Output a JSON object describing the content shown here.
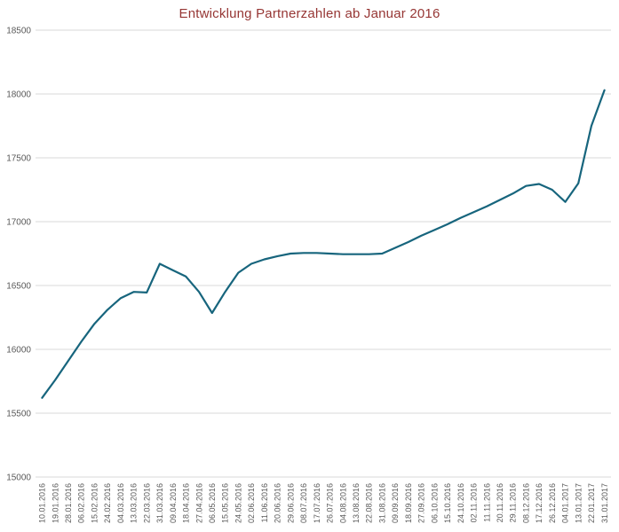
{
  "chart_data": {
    "type": "line",
    "title": "Entwicklung Partnerzahlen ab Januar 2016",
    "categories": [
      "10.01.2016",
      "19.01.2016",
      "28.01.2016",
      "06.02.2016",
      "15.02.2016",
      "24.02.2016",
      "04.03.2016",
      "13.03.2016",
      "22.03.2016",
      "31.03.2016",
      "09.04.2016",
      "18.04.2016",
      "27.04.2016",
      "06.05.2016",
      "15.05.2016",
      "24.05.2016",
      "02.06.2016",
      "11.06.2016",
      "20.06.2016",
      "29.06.2016",
      "08.07.2016",
      "17.07.2016",
      "26.07.2016",
      "04.08.2016",
      "13.08.2016",
      "22.08.2016",
      "31.08.2016",
      "09.09.2016",
      "18.09.2016",
      "27.09.2016",
      "06.10.2016",
      "15.10.2016",
      "24.10.2016",
      "02.11.2016",
      "11.11.2016",
      "20.11.2016",
      "29.11.2016",
      "08.12.2016",
      "17.12.2016",
      "26.12.2016",
      "04.01.2017",
      "13.01.2017",
      "22.01.2017",
      "31.01.2017"
    ],
    "values": [
      15620,
      15760,
      15910,
      16060,
      16200,
      16310,
      16400,
      16450,
      16445,
      16670,
      16620,
      16570,
      16450,
      16285,
      16450,
      16600,
      16670,
      16705,
      16730,
      16750,
      16755,
      16755,
      16750,
      16745,
      16745,
      16745,
      16750,
      16795,
      16840,
      16890,
      16935,
      16980,
      17030,
      17075,
      17120,
      17170,
      17220,
      17280,
      17295,
      17250,
      17155,
      17300,
      17750,
      18030
    ],
    "xlabel": "",
    "ylabel": "",
    "ylim": [
      15000,
      18500
    ],
    "ytick_step": 500,
    "yticks": [
      15000,
      15500,
      16000,
      16500,
      17000,
      17500,
      18000,
      18500
    ],
    "grid": true,
    "legend_position": "none",
    "line_color": "#17657d",
    "title_color": "#963634",
    "axis_label_color": "#595959",
    "grid_color": "#d9d9d9",
    "background_color": "#ffffff"
  }
}
